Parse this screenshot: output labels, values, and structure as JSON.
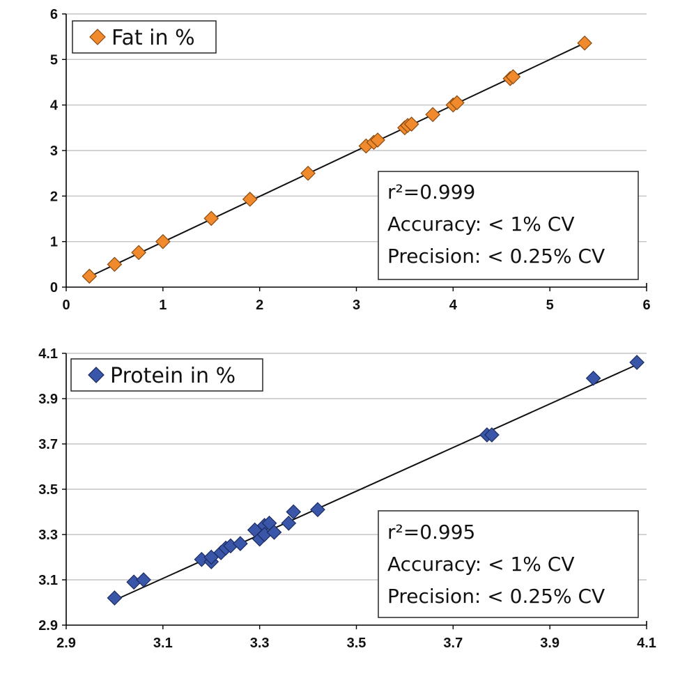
{
  "chart_data": [
    {
      "type": "scatter",
      "title": "",
      "xlabel": "",
      "ylabel": "",
      "xlim": [
        0,
        6
      ],
      "ylim": [
        0,
        6
      ],
      "xticks": [
        "0",
        "1",
        "2",
        "3",
        "4",
        "5",
        "6"
      ],
      "yticks": [
        "0",
        "1",
        "2",
        "3",
        "4",
        "5",
        "6"
      ],
      "grid": "horizontal",
      "legend": {
        "label": "Fat in %",
        "placement": "top-left",
        "color": "#f08a2c"
      },
      "series": [
        {
          "name": "Fat in %",
          "color": "#f08a2c",
          "x": [
            0.24,
            0.5,
            0.75,
            1.0,
            1.5,
            1.9,
            2.5,
            3.1,
            3.18,
            3.22,
            3.5,
            3.53,
            3.57,
            3.79,
            4.0,
            4.04,
            4.59,
            4.62,
            5.36
          ],
          "y": [
            0.24,
            0.5,
            0.76,
            1.0,
            1.51,
            1.93,
            2.5,
            3.1,
            3.18,
            3.23,
            3.5,
            3.55,
            3.58,
            3.79,
            4.0,
            4.05,
            4.58,
            4.62,
            5.36
          ]
        }
      ],
      "fit_line": {
        "x": [
          0.24,
          5.36
        ],
        "y": [
          0.23,
          5.36
        ]
      },
      "stats": [
        "r²=0.999",
        "Accuracy: < 1% CV",
        "Precision: < 0.25% CV"
      ]
    },
    {
      "type": "scatter",
      "title": "",
      "xlabel": "",
      "ylabel": "",
      "xlim": [
        2.9,
        4.1
      ],
      "ylim": [
        2.9,
        4.1
      ],
      "xticks": [
        "2.9",
        "3.1",
        "3.3",
        "3.5",
        "3.7",
        "3.9",
        "4.1"
      ],
      "yticks": [
        "2.9",
        "3.1",
        "3.3",
        "3.5",
        "3.7",
        "3.9",
        "4.1"
      ],
      "grid": "horizontal",
      "legend": {
        "label": "Protein in %",
        "placement": "top-left",
        "color": "#3a56a8"
      },
      "series": [
        {
          "name": "Protein in %",
          "color": "#3a56a8",
          "x": [
            3.0,
            3.04,
            3.06,
            3.18,
            3.2,
            3.2,
            3.22,
            3.23,
            3.24,
            3.26,
            3.29,
            3.3,
            3.31,
            3.31,
            3.32,
            3.33,
            3.36,
            3.37,
            3.42,
            3.77,
            3.78,
            3.99,
            4.08
          ],
          "y": [
            3.02,
            3.09,
            3.1,
            3.19,
            3.18,
            3.2,
            3.22,
            3.24,
            3.25,
            3.26,
            3.32,
            3.28,
            3.34,
            3.3,
            3.35,
            3.31,
            3.35,
            3.4,
            3.41,
            3.74,
            3.74,
            3.99,
            4.06
          ]
        }
      ],
      "fit_line": {
        "x": [
          3.0,
          4.08
        ],
        "y": [
          3.01,
          4.05
        ]
      },
      "stats": [
        "r²=0.995",
        "Accuracy: < 1% CV",
        "Precision: < 0.25% CV"
      ]
    }
  ]
}
